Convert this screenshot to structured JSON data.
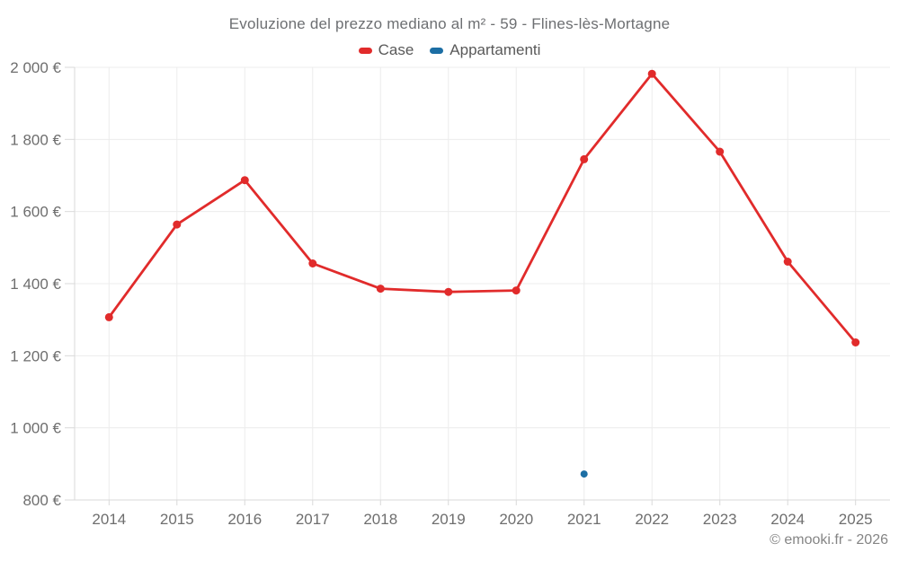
{
  "header": {
    "title": "Evoluzione del prezzo mediano al m² - 59 - Flines-lès-Mortagne"
  },
  "legend": {
    "items": [
      {
        "label": "Case",
        "color": "#e12b2b"
      },
      {
        "label": "Appartamenti",
        "color": "#1c6ea4"
      }
    ]
  },
  "footer": {
    "copyright": "© emooki.fr - 2026"
  },
  "colors": {
    "case_red": "#e12b2b",
    "appartamenti_blue": "#1c6ea4",
    "gridline": "#ececec",
    "axis": "#d9d9d9",
    "tick_label": "#6e6e6e"
  },
  "chart_data": {
    "type": "line",
    "title": "Evoluzione del prezzo mediano al m² - 59 - Flines-lès-Mortagne",
    "xlabel": "",
    "ylabel": "",
    "currency": "€",
    "grid": true,
    "legend_position": "top",
    "categories": [
      "2014",
      "2015",
      "2016",
      "2017",
      "2018",
      "2019",
      "2020",
      "2021",
      "2022",
      "2023",
      "2024",
      "2025"
    ],
    "series": [
      {
        "name": "Case",
        "color": "#e12b2b",
        "point_radius": 4.5,
        "values": [
          1307,
          1564,
          1687,
          1456,
          1386,
          1377,
          1381,
          1745,
          1982,
          1766,
          1461,
          1237
        ]
      },
      {
        "name": "Appartamenti",
        "color": "#1c6ea4",
        "point_radius": 4,
        "values": [
          null,
          null,
          null,
          null,
          null,
          null,
          null,
          872,
          null,
          null,
          null,
          null
        ]
      }
    ],
    "ylim": [
      800,
      2000
    ],
    "y_ticks": [
      {
        "value": 800,
        "label": "800 €"
      },
      {
        "value": 1000,
        "label": "1 000 €"
      },
      {
        "value": 1200,
        "label": "1 200 €"
      },
      {
        "value": 1400,
        "label": "1 400 €"
      },
      {
        "value": 1600,
        "label": "1 600 €"
      },
      {
        "value": 1800,
        "label": "1 800 €"
      },
      {
        "value": 2000,
        "label": "2 000 €"
      }
    ]
  }
}
